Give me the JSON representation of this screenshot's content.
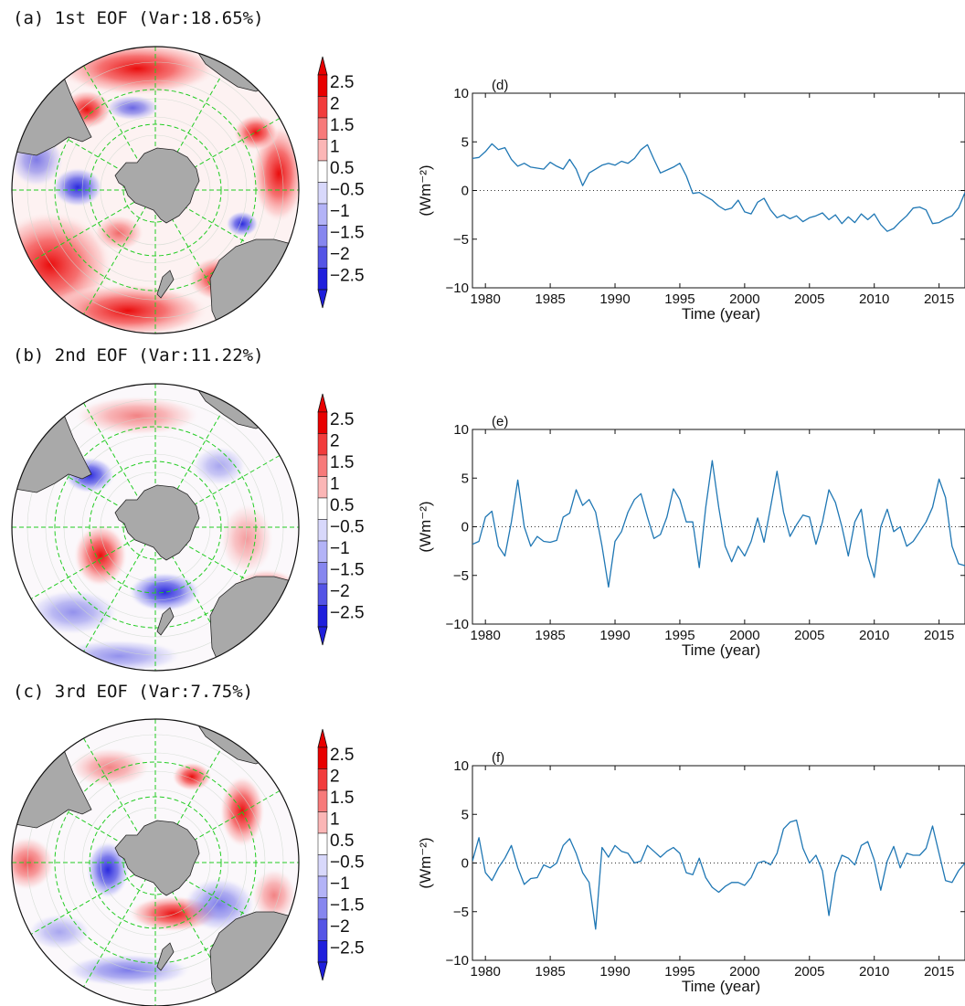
{
  "panels_left": [
    {
      "title": "(a) 1st EOF (Var:18.65%)"
    },
    {
      "title": "(b) 2nd EOF (Var:11.22%)"
    },
    {
      "title": "(c) 3rd EOF (Var:7.75%)"
    }
  ],
  "colorbar": {
    "labels": [
      "2.5",
      "2",
      "1.5",
      "1",
      "0.5",
      "−0.5",
      "−1",
      "−1.5",
      "−2",
      "−2.5"
    ],
    "colors": [
      "#e80000",
      "#f23c3c",
      "#f77a7a",
      "#fbb6b6",
      "#ffffff",
      "#d8d8fb",
      "#b3b3f7",
      "#8686ef",
      "#5454e6",
      "#1f1fdc"
    ]
  },
  "colors": {
    "line": "#1f77b4",
    "land": "#a9a9a9",
    "grid": "#22cc22"
  },
  "chart_data": [
    {
      "type": "line",
      "panel_label": "(d)",
      "xlabel": "Time (year)",
      "ylabel": "(Wm⁻²)",
      "xlim": [
        1979,
        2017
      ],
      "ylim": [
        -10,
        10
      ],
      "xticks": [
        1980,
        1985,
        1990,
        1995,
        2000,
        2005,
        2010,
        2015
      ],
      "yticks": [
        -10,
        -5,
        0,
        5,
        10
      ],
      "zero_line": "dotted",
      "x": [
        1979,
        1979.5,
        1980,
        1980.5,
        1981,
        1981.5,
        1982,
        1982.5,
        1983,
        1983.5,
        1984,
        1984.5,
        1985,
        1985.5,
        1986,
        1986.5,
        1987,
        1987.5,
        1988,
        1988.5,
        1989,
        1989.5,
        1990,
        1990.5,
        1991,
        1991.5,
        1992,
        1992.5,
        1993,
        1993.5,
        1994,
        1994.5,
        1995,
        1995.5,
        1996,
        1996.5,
        1997,
        1997.5,
        1998,
        1998.5,
        1999,
        1999.5,
        2000,
        2000.5,
        2001,
        2001.5,
        2002,
        2002.5,
        2003,
        2003.5,
        2004,
        2004.5,
        2005,
        2005.5,
        2006,
        2006.5,
        2007,
        2007.5,
        2008,
        2008.5,
        2009,
        2009.5,
        2010,
        2010.5,
        2011,
        2011.5,
        2012,
        2012.5,
        2013,
        2013.5,
        2014,
        2014.5,
        2015,
        2015.5,
        2016,
        2016.5,
        2017
      ],
      "y": [
        3.3,
        3.4,
        4.0,
        4.8,
        4.2,
        4.4,
        3.2,
        2.5,
        2.8,
        2.4,
        2.3,
        2.2,
        2.9,
        2.5,
        2.2,
        3.2,
        2.2,
        0.5,
        1.8,
        2.2,
        2.6,
        2.8,
        2.6,
        3.0,
        2.8,
        3.3,
        4.2,
        4.7,
        3.2,
        1.8,
        2.1,
        2.4,
        2.8,
        1.5,
        -0.3,
        -0.2,
        -0.6,
        -1.0,
        -1.6,
        -2.0,
        -1.8,
        -1.0,
        -2.2,
        -2.4,
        -1.2,
        -0.8,
        -2.0,
        -2.8,
        -2.5,
        -2.9,
        -2.6,
        -3.2,
        -2.8,
        -2.6,
        -2.3,
        -3.0,
        -2.5,
        -3.4,
        -2.7,
        -3.3,
        -2.4,
        -3.0,
        -2.4,
        -3.5,
        -4.2,
        -3.9,
        -3.2,
        -2.6,
        -1.8,
        -1.7,
        -2.0,
        -3.4,
        -3.3,
        -2.9,
        -2.6,
        -1.8,
        -0.2
      ]
    },
    {
      "type": "line",
      "panel_label": "(e)",
      "xlabel": "Time (year)",
      "ylabel": "(Wm⁻²)",
      "xlim": [
        1979,
        2017
      ],
      "ylim": [
        -10,
        10
      ],
      "xticks": [
        1980,
        1985,
        1990,
        1995,
        2000,
        2005,
        2010,
        2015
      ],
      "yticks": [
        -10,
        -5,
        0,
        5,
        10
      ],
      "zero_line": "dotted",
      "x": [
        1979,
        1979.5,
        1980,
        1980.5,
        1981,
        1981.5,
        1982,
        1982.5,
        1983,
        1983.5,
        1984,
        1984.5,
        1985,
        1985.5,
        1986,
        1986.5,
        1987,
        1987.5,
        1988,
        1988.5,
        1989,
        1989.5,
        1990,
        1990.5,
        1991,
        1991.5,
        1992,
        1992.5,
        1993,
        1993.5,
        1994,
        1994.5,
        1995,
        1995.5,
        1996,
        1996.5,
        1997,
        1997.5,
        1998,
        1998.5,
        1999,
        1999.5,
        2000,
        2000.5,
        2001,
        2001.5,
        2002,
        2002.5,
        2003,
        2003.5,
        2004,
        2004.5,
        2005,
        2005.5,
        2006,
        2006.5,
        2007,
        2007.5,
        2008,
        2008.5,
        2009,
        2009.5,
        2010,
        2010.5,
        2011,
        2011.5,
        2012,
        2012.5,
        2013,
        2013.5,
        2014,
        2014.5,
        2015,
        2015.5,
        2016,
        2016.5,
        2017
      ],
      "y": [
        -1.8,
        -1.5,
        1.0,
        1.6,
        -2.0,
        -3.0,
        0.5,
        4.8,
        0.0,
        -2.0,
        -1.0,
        -1.5,
        -1.6,
        -1.4,
        1.0,
        1.4,
        3.8,
        2.2,
        2.8,
        1.5,
        -2.0,
        -6.2,
        -1.5,
        -0.5,
        1.5,
        2.8,
        3.4,
        1.0,
        -1.2,
        -0.8,
        1.0,
        3.9,
        2.8,
        0.5,
        0.5,
        -4.2,
        2.0,
        6.8,
        2.0,
        -2.0,
        -3.6,
        -2.0,
        -3.0,
        -1.5,
        0.9,
        -1.6,
        2.0,
        5.7,
        1.5,
        -1.0,
        0.2,
        1.2,
        1.0,
        -1.8,
        0.5,
        3.8,
        2.5,
        0.0,
        -3.0,
        0.5,
        1.8,
        -3.0,
        -5.2,
        0.0,
        1.8,
        -0.5,
        0.0,
        -2.0,
        -1.5,
        -0.5,
        0.5,
        2.0,
        4.9,
        3.0,
        -2.0,
        -3.8,
        -4.0
      ]
    },
    {
      "type": "line",
      "panel_label": "(f)",
      "xlabel": "Time (year)",
      "ylabel": "(Wm⁻²)",
      "xlim": [
        1979,
        2017
      ],
      "ylim": [
        -10,
        10
      ],
      "xticks": [
        1980,
        1985,
        1990,
        1995,
        2000,
        2005,
        2010,
        2015
      ],
      "yticks": [
        -10,
        -5,
        0,
        5,
        10
      ],
      "zero_line": "dotted",
      "x": [
        1979,
        1979.5,
        1980,
        1980.5,
        1981,
        1981.5,
        1982,
        1982.5,
        1983,
        1983.5,
        1984,
        1984.5,
        1985,
        1985.5,
        1986,
        1986.5,
        1987,
        1987.5,
        1988,
        1988.5,
        1989,
        1989.5,
        1990,
        1990.5,
        1991,
        1991.5,
        1992,
        1992.5,
        1993,
        1993.5,
        1994,
        1994.5,
        1995,
        1995.5,
        1996,
        1996.5,
        1997,
        1997.5,
        1998,
        1998.5,
        1999,
        1999.5,
        2000,
        2000.5,
        2001,
        2001.5,
        2002,
        2002.5,
        2003,
        2003.5,
        2004,
        2004.5,
        2005,
        2005.5,
        2006,
        2006.5,
        2007,
        2007.5,
        2008,
        2008.5,
        2009,
        2009.5,
        2010,
        2010.5,
        2011,
        2011.5,
        2012,
        2012.5,
        2013,
        2013.5,
        2014,
        2014.5,
        2015,
        2015.5,
        2016,
        2016.5,
        2017
      ],
      "y": [
        0.2,
        2.6,
        -1.0,
        -1.8,
        -0.5,
        0.5,
        1.8,
        -0.5,
        -2.2,
        -1.6,
        -1.5,
        -0.2,
        -0.5,
        0.0,
        1.8,
        2.5,
        1.0,
        -1.0,
        -2.0,
        -6.8,
        1.6,
        0.6,
        1.8,
        1.2,
        1.0,
        0.0,
        0.2,
        1.8,
        1.2,
        0.6,
        1.2,
        1.6,
        1.0,
        -1.0,
        -1.2,
        0.5,
        -1.5,
        -2.5,
        -3.0,
        -2.4,
        -2.0,
        -2.0,
        -2.3,
        -1.5,
        0.0,
        0.2,
        -0.2,
        1.0,
        3.5,
        4.2,
        4.4,
        1.5,
        0.0,
        0.8,
        -0.8,
        -5.4,
        -1.0,
        0.8,
        0.5,
        -0.2,
        1.8,
        2.2,
        0.3,
        -2.8,
        0.2,
        1.7,
        -0.5,
        1.0,
        0.8,
        0.8,
        1.5,
        3.8,
        1.0,
        -1.8,
        -2.0,
        -0.8,
        0.0
      ]
    }
  ]
}
